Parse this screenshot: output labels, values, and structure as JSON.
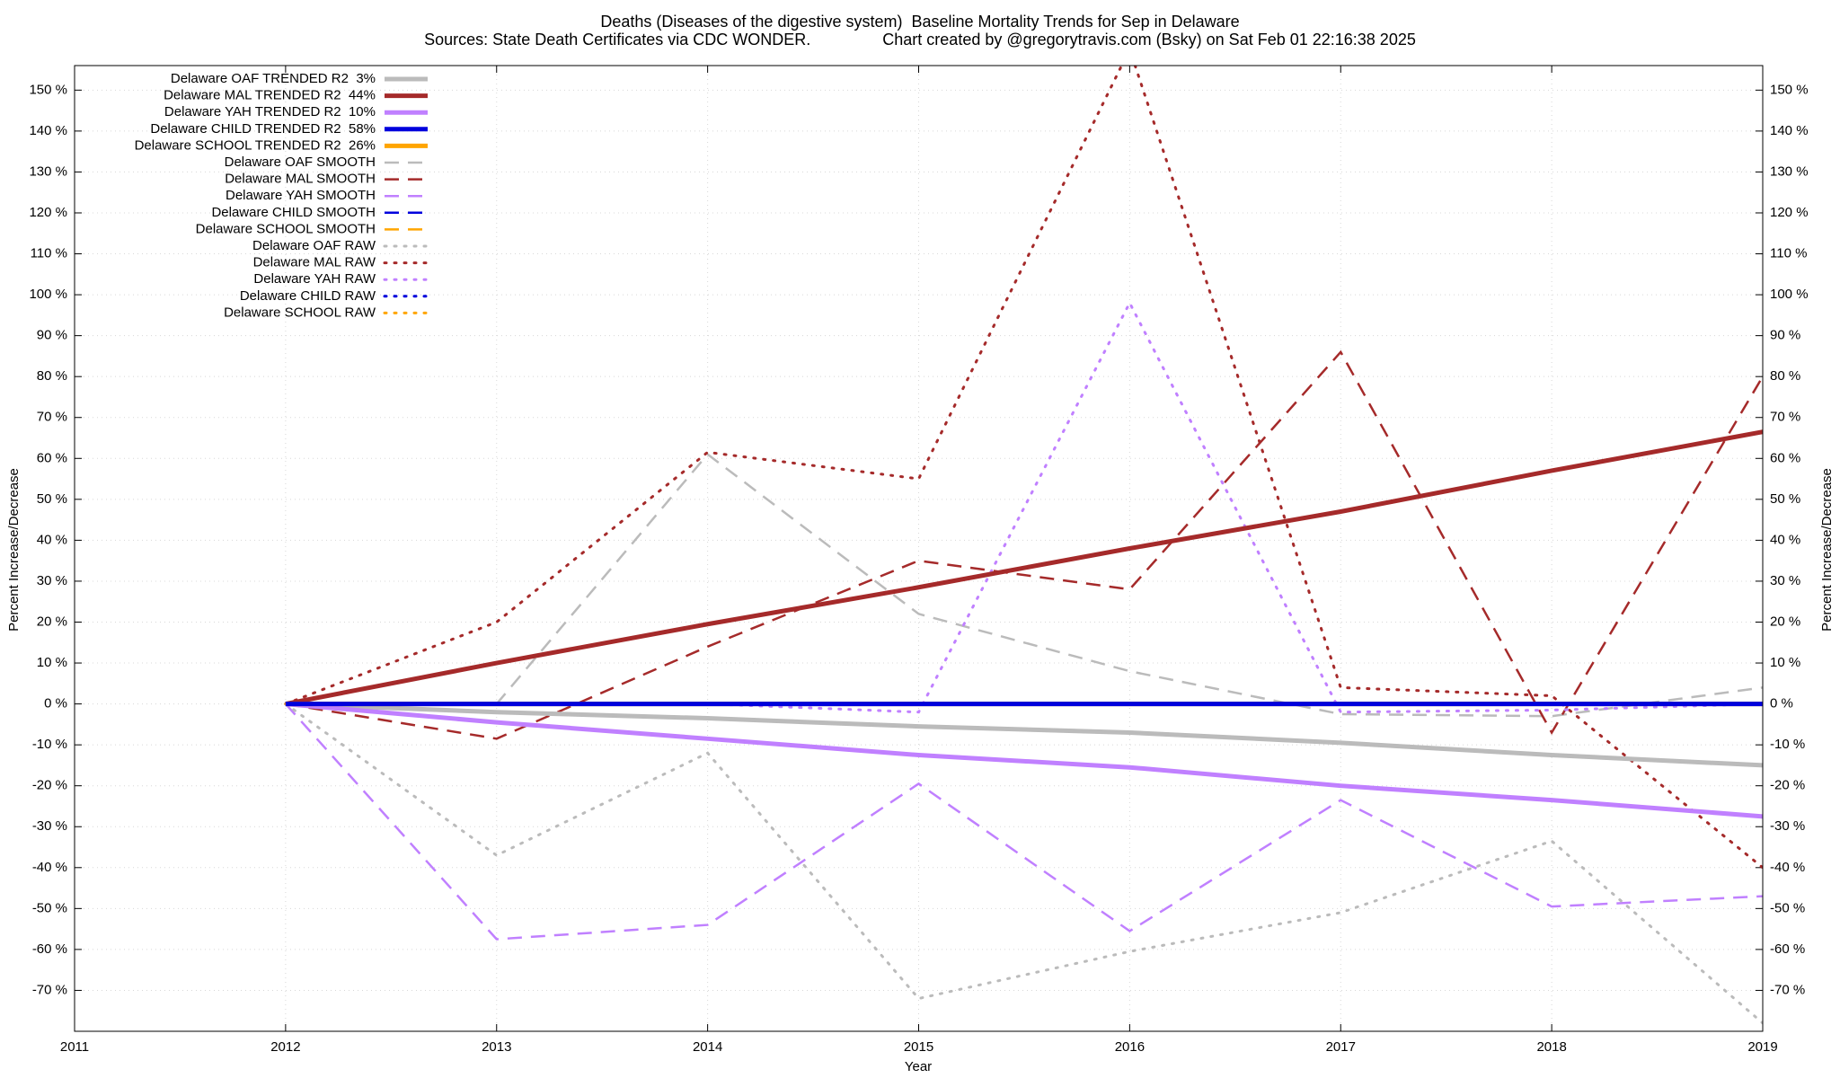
{
  "chart_data": {
    "type": "line",
    "title": "Deaths (Diseases of the digestive system)  Baseline Mortality Trends for Sep in Delaware",
    "subtitle": "Sources: State Death Certificates via CDC WONDER.                Chart created by @gregorytravis.com (Bsky) on Sat Feb 01 22:16:38 2025",
    "xlabel": "Year",
    "ylabel": "Percent Increase/Decrease",
    "y2label": "Percent Increase/Decrease",
    "x": [
      2012,
      2013,
      2014,
      2015,
      2016,
      2017,
      2018,
      2019
    ],
    "xlim": [
      2011,
      2019
    ],
    "xticks": [
      2011,
      2012,
      2013,
      2014,
      2015,
      2016,
      2017,
      2018,
      2019
    ],
    "ylim": [
      -80,
      156
    ],
    "yticks": [
      {
        "value": -70,
        "label": "-70 %"
      },
      {
        "value": -60,
        "label": "-60 %"
      },
      {
        "value": -50,
        "label": "-50 %"
      },
      {
        "value": -40,
        "label": "-40 %"
      },
      {
        "value": -30,
        "label": "-30 %"
      },
      {
        "value": -20,
        "label": "-20 %"
      },
      {
        "value": -10,
        "label": "-10 %"
      },
      {
        "value": 0,
        "label": "0 %"
      },
      {
        "value": 10,
        "label": "10 %"
      },
      {
        "value": 20,
        "label": "20 %"
      },
      {
        "value": 30,
        "label": "30 %"
      },
      {
        "value": 40,
        "label": "40 %"
      },
      {
        "value": 50,
        "label": "50 %"
      },
      {
        "value": 60,
        "label": "60 %"
      },
      {
        "value": 70,
        "label": "70 %"
      },
      {
        "value": 80,
        "label": "80 %"
      },
      {
        "value": 90,
        "label": "90 %"
      },
      {
        "value": 100,
        "label": "100 %"
      },
      {
        "value": 110,
        "label": "110 %"
      },
      {
        "value": 120,
        "label": "120 %"
      },
      {
        "value": 130,
        "label": "130 %"
      },
      {
        "value": 140,
        "label": "140 %"
      },
      {
        "value": 150,
        "label": "150 %"
      }
    ],
    "y2lim": [
      -80,
      156
    ],
    "y2ticks": [
      {
        "value": -70,
        "label": "-70 %"
      },
      {
        "value": -60,
        "label": "-60 %"
      },
      {
        "value": -50,
        "label": "-50 %"
      },
      {
        "value": -40,
        "label": "-40 %"
      },
      {
        "value": -30,
        "label": "-30 %"
      },
      {
        "value": -20,
        "label": "-20 %"
      },
      {
        "value": -10,
        "label": "-10 %"
      },
      {
        "value": 0,
        "label": "0 %"
      },
      {
        "value": 10,
        "label": "10 %"
      },
      {
        "value": 20,
        "label": "20 %"
      },
      {
        "value": 30,
        "label": "30 %"
      },
      {
        "value": 40,
        "label": "40 %"
      },
      {
        "value": 50,
        "label": "50 %"
      },
      {
        "value": 60,
        "label": "60 %"
      },
      {
        "value": 70,
        "label": "70 %"
      },
      {
        "value": 80,
        "label": "80 %"
      },
      {
        "value": 90,
        "label": "90 %"
      },
      {
        "value": 100,
        "label": "100 %"
      },
      {
        "value": 110,
        "label": "110 %"
      },
      {
        "value": 120,
        "label": "120 %"
      },
      {
        "value": 130,
        "label": "130 %"
      },
      {
        "value": 140,
        "label": "140 %"
      },
      {
        "value": 150,
        "label": "150 %"
      }
    ],
    "grid": true,
    "legend": "top-left",
    "series": [
      {
        "name": "Delaware OAF TRENDED R2  3%",
        "color": "#bbbbbb",
        "dash": "solid",
        "values": [
          0,
          -2,
          -3.5,
          -5.5,
          -7,
          -9.5,
          -12.5,
          -15
        ]
      },
      {
        "name": "Delaware MAL TRENDED R2  44%",
        "color": "#a52a2a",
        "dash": "solid",
        "values": [
          0,
          10,
          19.5,
          28.5,
          38,
          47,
          57,
          66.5
        ]
      },
      {
        "name": "Delaware YAH TRENDED R2  10%",
        "color": "#c080ff",
        "dash": "solid",
        "values": [
          0,
          -4.5,
          -8.5,
          -12.5,
          -15.5,
          -20,
          -23.5,
          -27.5
        ]
      },
      {
        "name": "Delaware CHILD TRENDED R2  58%",
        "color": "#0000dd",
        "dash": "solid",
        "values": [
          0,
          0,
          0,
          0,
          0,
          0,
          0,
          0
        ]
      },
      {
        "name": "Delaware SCHOOL TRENDED R2  26%",
        "color": "#ffa500",
        "dash": "solid",
        "values": [
          0,
          0,
          0,
          0,
          0,
          0,
          0,
          0
        ]
      },
      {
        "name": "Delaware OAF SMOOTH",
        "color": "#bbbbbb",
        "dash": "dashed",
        "values": [
          0,
          0,
          61,
          22,
          8,
          -2.5,
          -3,
          4
        ]
      },
      {
        "name": "Delaware MAL SMOOTH",
        "color": "#a52a2a",
        "dash": "dashed",
        "values": [
          0,
          -8.5,
          14,
          35,
          28,
          86,
          -7,
          80
        ]
      },
      {
        "name": "Delaware YAH SMOOTH",
        "color": "#c080ff",
        "dash": "dashed",
        "values": [
          0,
          -57.5,
          -54,
          -19.5,
          -55.5,
          -23.5,
          -49.5,
          -47
        ]
      },
      {
        "name": "Delaware CHILD SMOOTH",
        "color": "#0000dd",
        "dash": "dashed",
        "values": [
          0,
          0,
          0,
          0,
          0,
          0,
          0,
          0
        ]
      },
      {
        "name": "Delaware SCHOOL SMOOTH",
        "color": "#ffa500",
        "dash": "dashed",
        "values": [
          0,
          0,
          0,
          0,
          0,
          0,
          0,
          0
        ]
      },
      {
        "name": "Delaware OAF RAW",
        "color": "#bbbbbb",
        "dash": "dotted",
        "values": [
          0,
          -37,
          -12,
          -72,
          -60.5,
          -51,
          -33.5,
          -78
        ]
      },
      {
        "name": "Delaware MAL RAW",
        "color": "#a52a2a",
        "dash": "dotted",
        "values": [
          0,
          20,
          61.5,
          55,
          160,
          4,
          2,
          -40
        ]
      },
      {
        "name": "Delaware YAH RAW",
        "color": "#c080ff",
        "dash": "dotted",
        "values": [
          0,
          0,
          0,
          -2,
          98,
          -2,
          -1.5,
          0
        ]
      },
      {
        "name": "Delaware CHILD RAW",
        "color": "#0000dd",
        "dash": "dotted",
        "values": [
          0,
          0,
          0,
          0,
          0,
          0,
          0,
          0
        ]
      },
      {
        "name": "Delaware SCHOOL RAW",
        "color": "#ffa500",
        "dash": "dotted",
        "values": [
          0,
          0,
          0,
          0,
          0,
          0,
          0,
          0
        ]
      }
    ]
  }
}
